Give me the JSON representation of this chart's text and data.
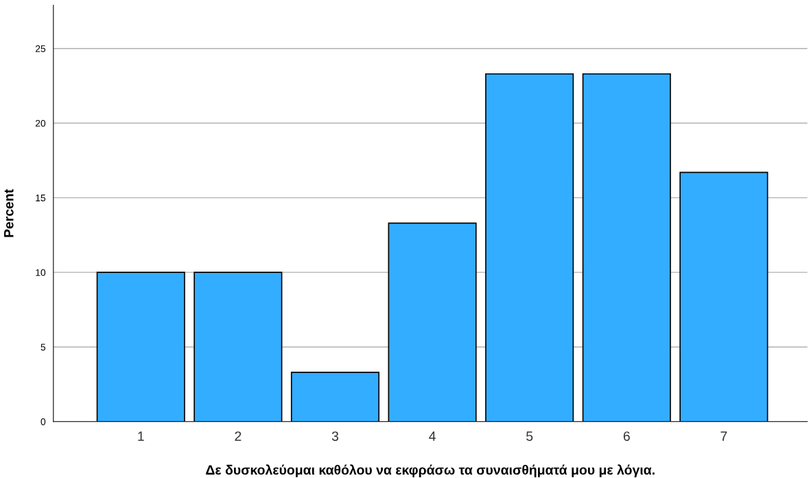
{
  "chart_data": {
    "type": "bar",
    "xlabel": "Δε δυσκολεύομαι καθόλου να εκφράσω τα συναισθήματά μου με λόγια.",
    "ylabel": "Percent",
    "categories": [
      "1",
      "2",
      "3",
      "4",
      "5",
      "6",
      "7"
    ],
    "values": [
      10,
      10,
      3.3,
      13.3,
      23.3,
      23.3,
      16.7
    ],
    "color": "#33adff",
    "ylim": [
      0,
      27.9
    ],
    "yticks": [
      0,
      5,
      10,
      15,
      20,
      25
    ],
    "grid": "y",
    "legend": false
  }
}
